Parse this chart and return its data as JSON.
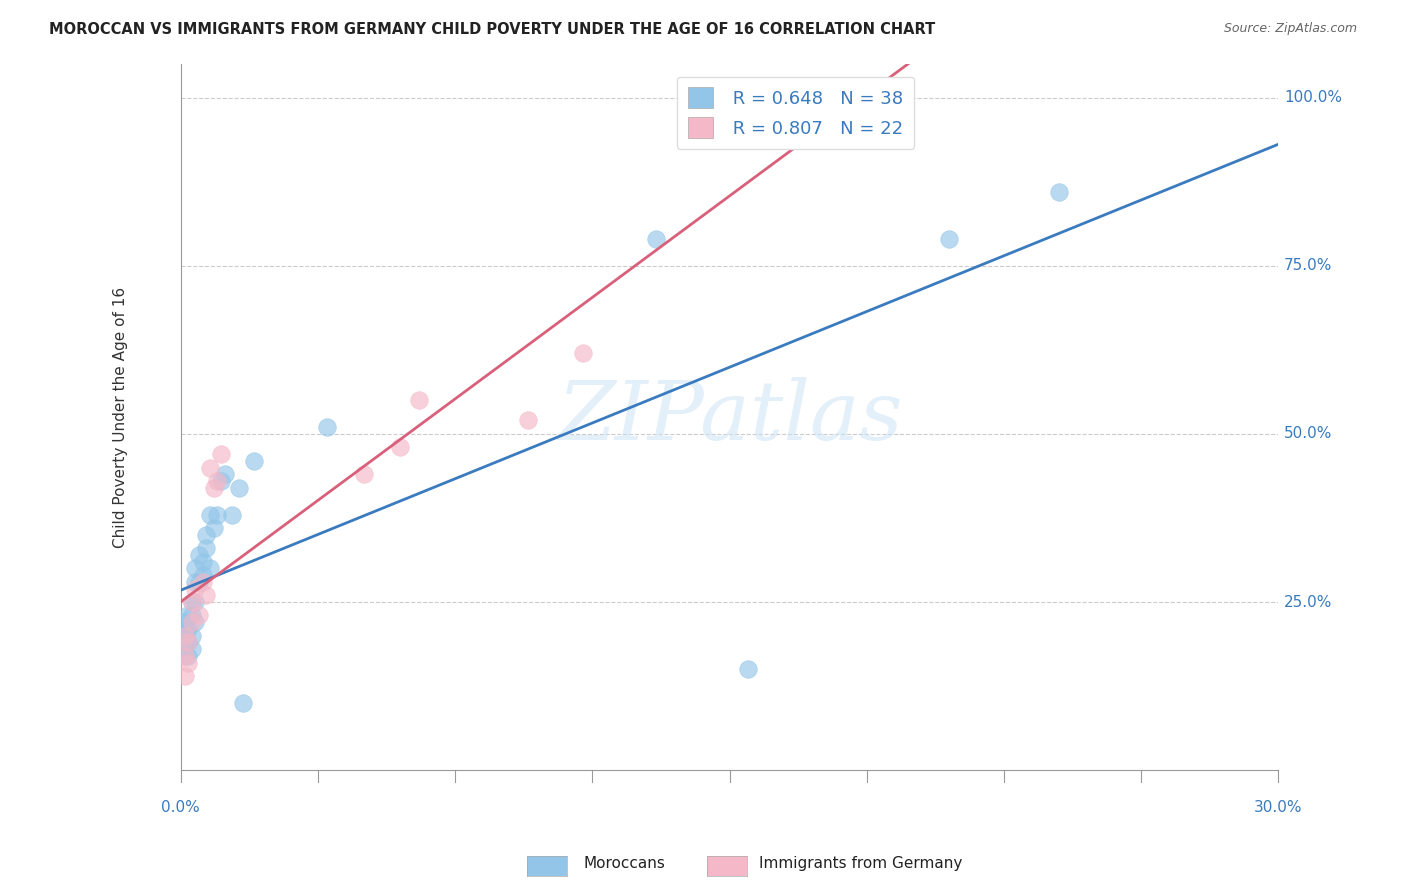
{
  "title": "MOROCCAN VS IMMIGRANTS FROM GERMANY CHILD POVERTY UNDER THE AGE OF 16 CORRELATION CHART",
  "source": "Source: ZipAtlas.com",
  "ylabel": "Child Poverty Under the Age of 16",
  "legend_label1": "Moroccans",
  "legend_label2": "Immigrants from Germany",
  "R1": 0.648,
  "N1": 38,
  "R2": 0.807,
  "N2": 22,
  "watermark": "ZIPatlas",
  "blue_color": "#92c5e8",
  "pink_color": "#f4b8c8",
  "blue_line_color": "#3a7bbf",
  "pink_line_color": "#d9607a",
  "xmin": 0.0,
  "xmax": 0.3,
  "ymin": 0.0,
  "ymax": 1.05,
  "moroccans_x": [
    0.001,
    0.001,
    0.001,
    0.001,
    0.001,
    0.002,
    0.002,
    0.002,
    0.002,
    0.003,
    0.003,
    0.003,
    0.003,
    0.004,
    0.004,
    0.004,
    0.004,
    0.005,
    0.005,
    0.006,
    0.006,
    0.007,
    0.007,
    0.008,
    0.008,
    0.009,
    0.01,
    0.011,
    0.012,
    0.014,
    0.016,
    0.017,
    0.02,
    0.04,
    0.13,
    0.155,
    0.21,
    0.24
  ],
  "moroccans_y": [
    0.17,
    0.19,
    0.2,
    0.21,
    0.22,
    0.17,
    0.19,
    0.21,
    0.23,
    0.18,
    0.2,
    0.23,
    0.25,
    0.22,
    0.25,
    0.28,
    0.3,
    0.28,
    0.32,
    0.29,
    0.31,
    0.33,
    0.35,
    0.3,
    0.38,
    0.36,
    0.38,
    0.43,
    0.44,
    0.38,
    0.42,
    0.1,
    0.46,
    0.51,
    0.79,
    0.15,
    0.79,
    0.86
  ],
  "germany_x": [
    0.001,
    0.001,
    0.001,
    0.002,
    0.002,
    0.003,
    0.003,
    0.004,
    0.005,
    0.006,
    0.007,
    0.008,
    0.009,
    0.01,
    0.011,
    0.05,
    0.06,
    0.065,
    0.095,
    0.11,
    0.155,
    0.185
  ],
  "germany_y": [
    0.14,
    0.17,
    0.2,
    0.16,
    0.19,
    0.22,
    0.25,
    0.27,
    0.23,
    0.28,
    0.26,
    0.45,
    0.42,
    0.43,
    0.47,
    0.44,
    0.48,
    0.55,
    0.52,
    0.62,
    0.95,
    1.0
  ]
}
